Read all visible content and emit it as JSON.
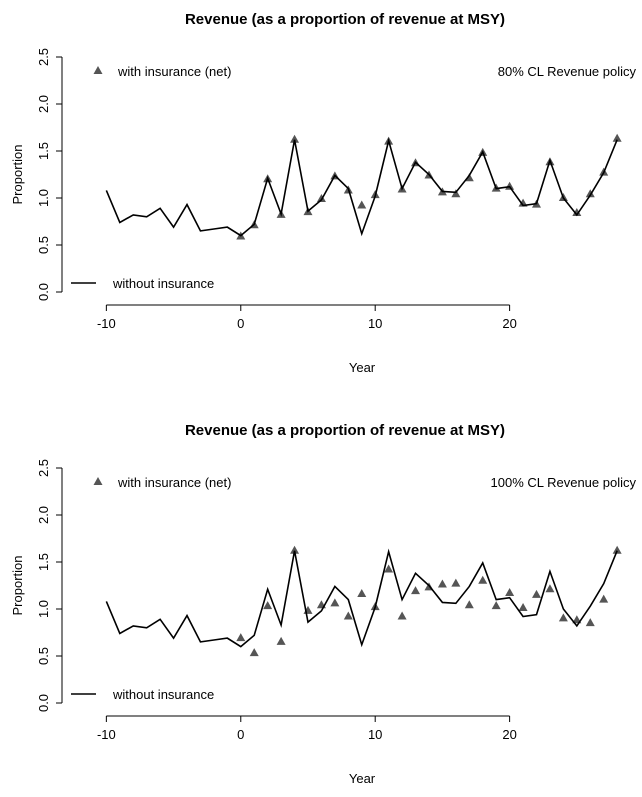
{
  "chart_data": [
    {
      "type": "line",
      "title": "Revenue (as a proportion of revenue at MSY)",
      "xlabel": "Year",
      "ylabel": "Proportion",
      "annotation": "80% CL Revenue policy",
      "x": [
        -10,
        -9,
        -8,
        -7,
        -6,
        -5,
        -4,
        -3,
        -2,
        -1,
        0,
        1,
        2,
        3,
        4,
        5,
        6,
        7,
        8,
        9,
        10,
        11,
        12,
        13,
        14,
        15,
        16,
        17,
        18,
        19,
        20,
        21,
        22,
        23,
        24,
        25,
        26,
        27,
        28
      ],
      "xlim": [
        -13.3,
        29.7
      ],
      "xticks": [
        -10,
        0,
        10,
        20
      ],
      "ylim": [
        0,
        2.5
      ],
      "yticks": [
        {
          "value": 0,
          "label": "0.0"
        },
        {
          "value": 0.5,
          "label": "0.5"
        },
        {
          "value": 1,
          "label": "1.0"
        },
        {
          "value": 1.5,
          "label": "1.5"
        },
        {
          "value": 2,
          "label": "2.0"
        },
        {
          "value": 2.5,
          "label": "2.5"
        }
      ],
      "series": [
        {
          "name": "with insurance (net)",
          "color": "#555555",
          "marker": "triangle",
          "values": [
            null,
            null,
            null,
            null,
            null,
            null,
            null,
            null,
            null,
            null,
            0.59,
            0.71,
            1.2,
            0.82,
            1.62,
            0.85,
            0.99,
            1.23,
            1.08,
            0.92,
            1.03,
            1.6,
            1.09,
            1.37,
            1.24,
            1.06,
            1.04,
            1.21,
            1.48,
            1.1,
            1.12,
            0.94,
            0.93,
            1.38,
            1.0,
            0.84,
            1.04,
            1.27,
            1.63
          ]
        },
        {
          "name": "without insurance",
          "color": "#000000",
          "marker": "line",
          "values": [
            1.08,
            0.74,
            0.82,
            0.8,
            0.89,
            0.69,
            0.93,
            0.65,
            0.67,
            0.69,
            0.6,
            0.72,
            1.21,
            0.83,
            1.62,
            0.86,
            0.98,
            1.24,
            1.1,
            0.62,
            1.02,
            1.61,
            1.1,
            1.38,
            1.25,
            1.07,
            1.06,
            1.24,
            1.49,
            1.1,
            1.12,
            0.92,
            0.94,
            1.4,
            1.0,
            0.82,
            1.03,
            1.27,
            1.62
          ]
        }
      ]
    },
    {
      "type": "line",
      "title": "Revenue (as a proportion of revenue at MSY)",
      "xlabel": "Year",
      "ylabel": "Proportion",
      "annotation": "100% CL Revenue policy",
      "x": [
        -10,
        -9,
        -8,
        -7,
        -6,
        -5,
        -4,
        -3,
        -2,
        -1,
        0,
        1,
        2,
        3,
        4,
        5,
        6,
        7,
        8,
        9,
        10,
        11,
        12,
        13,
        14,
        15,
        16,
        17,
        18,
        19,
        20,
        21,
        22,
        23,
        24,
        25,
        26,
        27,
        28
      ],
      "xlim": [
        -13.3,
        29.7
      ],
      "xticks": [
        -10,
        0,
        10,
        20
      ],
      "ylim": [
        0,
        2.5
      ],
      "yticks": [
        {
          "value": 0,
          "label": "0.0"
        },
        {
          "value": 0.5,
          "label": "0.5"
        },
        {
          "value": 1,
          "label": "1.0"
        },
        {
          "value": 1.5,
          "label": "1.5"
        },
        {
          "value": 2,
          "label": "2.0"
        },
        {
          "value": 2.5,
          "label": "2.5"
        }
      ],
      "series": [
        {
          "name": "with insurance (net)",
          "color": "#555555",
          "marker": "triangle",
          "values": [
            null,
            null,
            null,
            null,
            null,
            null,
            null,
            null,
            null,
            null,
            0.69,
            0.53,
            1.03,
            0.65,
            1.62,
            0.98,
            1.04,
            1.06,
            0.92,
            1.16,
            1.02,
            1.42,
            0.92,
            1.19,
            1.23,
            1.26,
            1.27,
            1.04,
            1.3,
            1.03,
            1.17,
            1.01,
            1.15,
            1.21,
            0.9,
            0.88,
            0.85,
            1.1,
            1.62
          ]
        },
        {
          "name": "without insurance",
          "color": "#000000",
          "marker": "line",
          "values": [
            1.08,
            0.74,
            0.82,
            0.8,
            0.89,
            0.69,
            0.93,
            0.65,
            0.67,
            0.69,
            0.6,
            0.72,
            1.21,
            0.83,
            1.62,
            0.86,
            0.98,
            1.24,
            1.1,
            0.62,
            1.02,
            1.61,
            1.1,
            1.38,
            1.25,
            1.07,
            1.06,
            1.24,
            1.49,
            1.1,
            1.12,
            0.92,
            0.94,
            1.4,
            1.0,
            0.82,
            1.03,
            1.27,
            1.62
          ]
        }
      ]
    }
  ]
}
